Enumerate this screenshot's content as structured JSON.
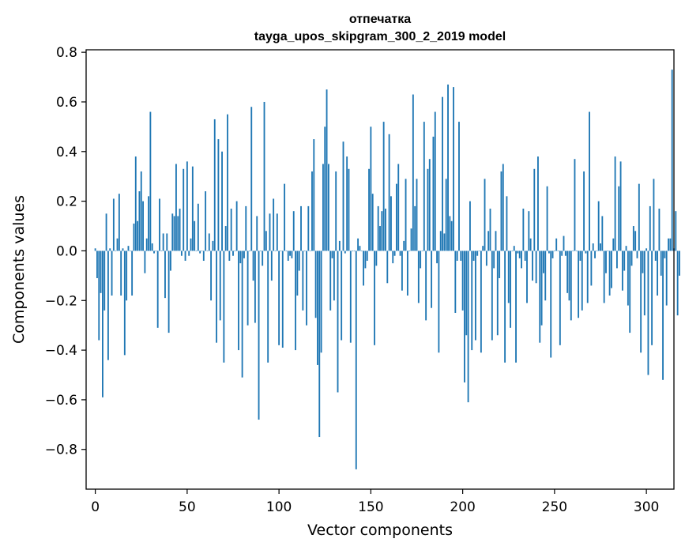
{
  "chart_data": {
    "type": "bar",
    "title": "отпечатка",
    "subtitle": "tayga_upos_skipgram_300_2_2019 model",
    "xlabel": "Vector components",
    "ylabel": "Components values",
    "xlim": [
      -5,
      315
    ],
    "ylim": [
      -0.96,
      0.81
    ],
    "xticks": [
      0,
      50,
      100,
      150,
      200,
      250,
      300
    ],
    "xtick_labels": [
      "0",
      "50",
      "100",
      "150",
      "200",
      "250",
      "300"
    ],
    "yticks": [
      -0.8,
      -0.6,
      -0.4,
      -0.2,
      0.0,
      0.2,
      0.4,
      0.6,
      0.8
    ],
    "ytick_labels": [
      "−0.8",
      "−0.6",
      "−0.4",
      "−0.2",
      "0.0",
      "0.2",
      "0.4",
      "0.6",
      "0.8"
    ],
    "grid": false,
    "bar_color": "#1f77b4",
    "values": [
      0.01,
      -0.11,
      -0.36,
      -0.17,
      -0.59,
      -0.24,
      0.15,
      -0.44,
      0.01,
      -0.18,
      0.21,
      0.0,
      0.05,
      0.23,
      -0.18,
      0.01,
      -0.42,
      -0.2,
      0.02,
      0.0,
      -0.18,
      0.11,
      0.38,
      0.12,
      0.24,
      0.32,
      0.2,
      -0.09,
      0.05,
      0.22,
      0.56,
      0.03,
      -0.01,
      0.0,
      -0.31,
      0.21,
      0.0,
      0.07,
      -0.19,
      0.07,
      -0.33,
      -0.08,
      0.15,
      0.14,
      0.35,
      0.14,
      0.17,
      -0.02,
      0.33,
      -0.04,
      0.36,
      -0.02,
      0.05,
      0.34,
      0.12,
      0.0,
      0.19,
      -0.01,
      0.0,
      -0.04,
      0.24,
      0.0,
      0.07,
      -0.2,
      0.04,
      0.53,
      -0.37,
      0.45,
      -0.28,
      0.4,
      -0.45,
      0.1,
      0.55,
      -0.04,
      0.17,
      -0.02,
      0.0,
      0.2,
      -0.4,
      -0.05,
      -0.51,
      -0.03,
      0.18,
      -0.3,
      0.0,
      0.58,
      -0.12,
      -0.29,
      0.14,
      -0.68,
      0.0,
      -0.06,
      0.6,
      0.08,
      -0.45,
      0.15,
      -0.12,
      0.21,
      0.0,
      0.15,
      -0.38,
      0.0,
      -0.39,
      0.27,
      0.0,
      -0.04,
      -0.02,
      -0.03,
      0.16,
      -0.4,
      -0.18,
      -0.08,
      0.18,
      -0.24,
      0.0,
      -0.3,
      0.18,
      0.0,
      0.32,
      0.45,
      -0.27,
      -0.46,
      -0.75,
      -0.41,
      0.35,
      0.5,
      0.65,
      0.35,
      -0.24,
      -0.03,
      -0.2,
      0.32,
      -0.57,
      0.04,
      -0.36,
      0.44,
      -0.01,
      0.38,
      0.33,
      -0.37,
      0.0,
      0.0,
      -0.88,
      0.05,
      0.02,
      0.0,
      -0.14,
      -0.07,
      -0.04,
      0.33,
      0.5,
      0.23,
      -0.38,
      -0.06,
      0.18,
      0.1,
      0.16,
      0.52,
      0.17,
      -0.13,
      0.47,
      0.22,
      -0.05,
      -0.02,
      0.27,
      0.35,
      -0.02,
      -0.16,
      0.04,
      0.29,
      -0.18,
      0.0,
      0.09,
      0.63,
      0.18,
      0.29,
      -0.21,
      -0.07,
      0.0,
      0.52,
      -0.28,
      0.33,
      0.37,
      -0.23,
      0.46,
      0.56,
      -0.05,
      -0.41,
      0.08,
      0.62,
      0.07,
      0.29,
      0.67,
      0.14,
      0.12,
      0.66,
      -0.25,
      -0.04,
      0.52,
      -0.04,
      -0.24,
      -0.53,
      -0.34,
      -0.61,
      0.2,
      -0.4,
      -0.04,
      -0.36,
      -0.02,
      0.0,
      -0.41,
      0.02,
      0.29,
      -0.06,
      0.08,
      0.17,
      -0.36,
      -0.07,
      0.08,
      -0.34,
      -0.11,
      0.32,
      0.35,
      -0.45,
      0.22,
      -0.21,
      -0.31,
      0.0,
      0.02,
      -0.45,
      -0.01,
      -0.03,
      -0.07,
      0.17,
      -0.04,
      -0.21,
      0.16,
      0.05,
      -0.12,
      0.33,
      -0.13,
      0.38,
      -0.37,
      -0.3,
      -0.09,
      -0.2,
      0.26,
      -0.01,
      -0.43,
      -0.03,
      0.0,
      0.05,
      0.0,
      -0.38,
      -0.02,
      0.06,
      -0.02,
      -0.17,
      -0.2,
      -0.28,
      0.0,
      0.37,
      0.0,
      -0.27,
      -0.04,
      -0.24,
      0.32,
      -0.01,
      -0.21,
      0.56,
      -0.14,
      0.03,
      -0.03,
      0.0,
      0.2,
      0.03,
      0.14,
      -0.21,
      -0.09,
      0.0,
      -0.18,
      -0.15,
      0.05,
      0.38,
      -0.07,
      0.26,
      0.36,
      -0.16,
      -0.08,
      0.02,
      -0.22,
      -0.33,
      -0.06,
      0.1,
      0.08,
      -0.03,
      0.27,
      -0.41,
      -0.09,
      -0.26,
      0.01,
      -0.5,
      0.18,
      -0.38,
      0.29,
      -0.04,
      -0.18,
      0.17,
      -0.1,
      -0.52,
      -0.03,
      -0.22,
      0.05,
      0.05,
      0.73,
      0.01,
      0.16,
      -0.26,
      -0.1
    ],
    "x_start": 0
  }
}
